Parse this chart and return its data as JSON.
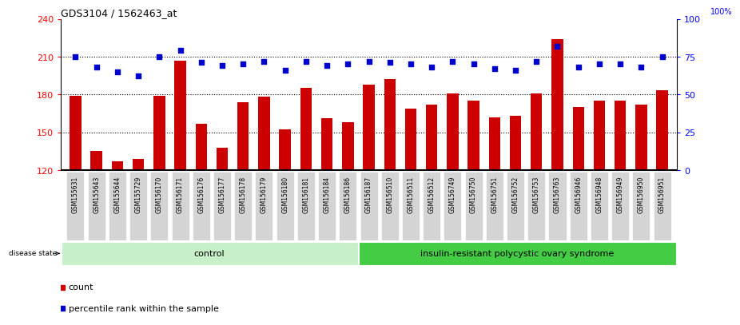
{
  "title": "GDS3104 / 1562463_at",
  "samples": [
    "GSM155631",
    "GSM155643",
    "GSM155644",
    "GSM155729",
    "GSM156170",
    "GSM156171",
    "GSM156176",
    "GSM156177",
    "GSM156178",
    "GSM156179",
    "GSM156180",
    "GSM156181",
    "GSM156184",
    "GSM156186",
    "GSM156187",
    "GSM156510",
    "GSM156511",
    "GSM156512",
    "GSM156749",
    "GSM156750",
    "GSM156751",
    "GSM156752",
    "GSM156753",
    "GSM156763",
    "GSM156946",
    "GSM156948",
    "GSM156949",
    "GSM156950",
    "GSM156951"
  ],
  "counts": [
    179,
    135,
    127,
    129,
    179,
    207,
    157,
    138,
    174,
    178,
    152,
    185,
    161,
    158,
    188,
    192,
    169,
    172,
    181,
    175,
    162,
    163,
    181,
    224,
    170,
    175,
    175,
    172,
    183
  ],
  "percentiles": [
    75,
    68,
    65,
    62,
    75,
    79,
    71,
    69,
    70,
    72,
    66,
    72,
    69,
    70,
    72,
    71,
    70,
    68,
    72,
    70,
    67,
    66,
    72,
    82,
    68,
    70,
    70,
    68,
    75
  ],
  "group_labels": [
    "control",
    "insulin-resistant polycystic ovary syndrome"
  ],
  "group_counts": [
    14,
    15
  ],
  "bar_color": "#cc0000",
  "dot_color": "#0000cc",
  "ylim_left": [
    120,
    240
  ],
  "ylim_right": [
    0,
    100
  ],
  "yticks_left": [
    120,
    150,
    180,
    210,
    240
  ],
  "yticks_right": [
    0,
    25,
    50,
    75,
    100
  ],
  "hlines": [
    150,
    180,
    210
  ],
  "xtick_bg": "#d0d0d0",
  "group1_color": "#c8f0c8",
  "group2_color": "#44cc44",
  "top_label_100": "100%",
  "top_label_75": "75"
}
